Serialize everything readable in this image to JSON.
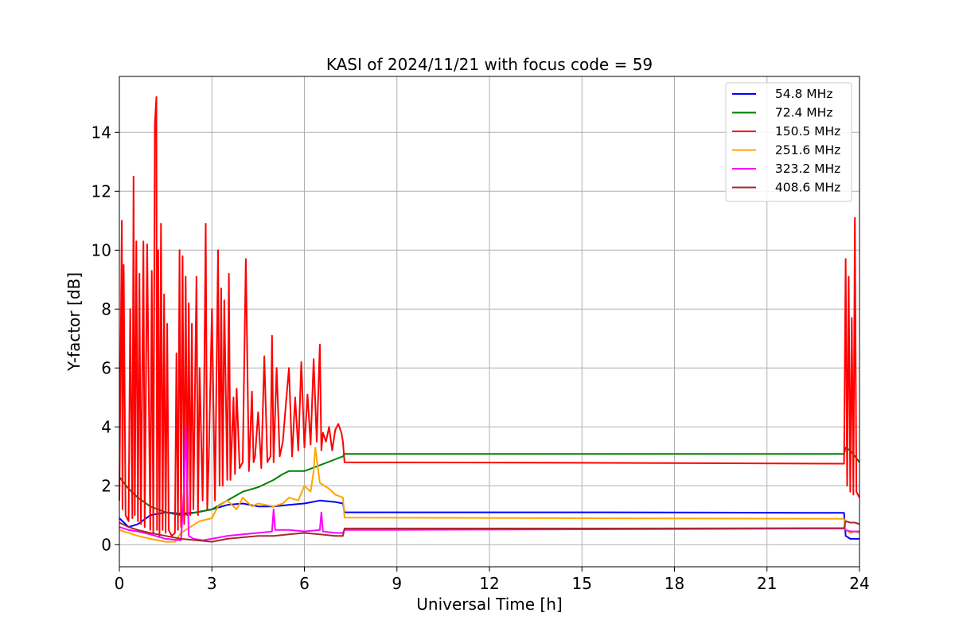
{
  "chart_data": {
    "type": "line",
    "title": "KASI of 2024/11/21 with focus code = 59",
    "xlabel": "Universal Time [h]",
    "ylabel": "Y-factor [dB]",
    "xlim": [
      0,
      24
    ],
    "ylim": [
      -0.75,
      15.9
    ],
    "xticks": [
      0,
      3,
      6,
      9,
      12,
      15,
      18,
      21,
      24
    ],
    "yticks": [
      0,
      2,
      4,
      6,
      8,
      10,
      12,
      14
    ],
    "grid": true,
    "legend_position": "top-right",
    "series": [
      {
        "name": "  54.8 MHz",
        "color": "#0000ff",
        "x": [
          0,
          0.3,
          0.6,
          1.0,
          1.5,
          2.0,
          2.5,
          3.0,
          3.5,
          4.0,
          4.5,
          5.0,
          5.5,
          6.0,
          6.5,
          7.0,
          7.25,
          7.3,
          15.0,
          23.5,
          23.55,
          23.7,
          23.85,
          24.0
        ],
        "y": [
          0.9,
          0.6,
          0.7,
          1.0,
          1.1,
          1.05,
          1.1,
          1.2,
          1.35,
          1.4,
          1.3,
          1.3,
          1.35,
          1.4,
          1.5,
          1.45,
          1.4,
          1.1,
          1.1,
          1.08,
          0.3,
          0.2,
          0.2,
          0.2
        ]
      },
      {
        "name": "  72.4 MHz",
        "color": "#008000",
        "x": [
          0,
          0.3,
          0.6,
          1.0,
          1.5,
          2.0,
          2.5,
          3.0,
          3.5,
          4.0,
          4.5,
          5.0,
          5.3,
          5.5,
          6.0,
          6.5,
          7.0,
          7.25,
          7.3,
          15.0,
          23.5,
          23.55,
          23.7,
          23.85,
          24.0
        ],
        "y": [
          2.3,
          1.9,
          1.6,
          1.3,
          1.1,
          1.0,
          1.1,
          1.2,
          1.5,
          1.8,
          1.95,
          2.2,
          2.4,
          2.5,
          2.5,
          2.7,
          2.9,
          3.0,
          3.08,
          3.08,
          3.08,
          3.3,
          3.2,
          3.0,
          2.8
        ]
      },
      {
        "name": "  150.5 MHz",
        "color": "#ff0000",
        "x": [
          0,
          0.08,
          0.1,
          0.14,
          0.2,
          0.3,
          0.35,
          0.42,
          0.46,
          0.5,
          0.55,
          0.6,
          0.65,
          0.7,
          0.78,
          0.82,
          0.9,
          1.0,
          1.05,
          1.1,
          1.15,
          1.2,
          1.22,
          1.26,
          1.3,
          1.35,
          1.4,
          1.45,
          1.5,
          1.55,
          1.6,
          1.7,
          1.8,
          1.85,
          1.9,
          1.95,
          2.0,
          2.05,
          2.1,
          2.15,
          2.2,
          2.25,
          2.3,
          2.35,
          2.4,
          2.5,
          2.55,
          2.6,
          2.7,
          2.75,
          2.8,
          2.85,
          2.9,
          3.0,
          3.1,
          3.2,
          3.25,
          3.3,
          3.35,
          3.4,
          3.5,
          3.55,
          3.6,
          3.7,
          3.75,
          3.8,
          3.9,
          4.0,
          4.1,
          4.2,
          4.3,
          4.35,
          4.4,
          4.5,
          4.6,
          4.7,
          4.8,
          4.9,
          4.95,
          5.0,
          5.1,
          5.2,
          5.3,
          5.4,
          5.5,
          5.6,
          5.7,
          5.8,
          5.9,
          6.0,
          6.1,
          6.2,
          6.3,
          6.4,
          6.5,
          6.55,
          6.6,
          6.7,
          6.8,
          6.9,
          7.0,
          7.1,
          7.2,
          7.25,
          7.3,
          15.0,
          23.5,
          23.55,
          23.6,
          23.65,
          23.7,
          23.75,
          23.8,
          23.85,
          23.9,
          24.0
        ],
        "y": [
          1.5,
          11.0,
          1.2,
          9.5,
          1.0,
          0.8,
          8.0,
          0.9,
          12.5,
          1.0,
          10.3,
          0.8,
          9.2,
          0.7,
          10.3,
          0.6,
          10.2,
          0.5,
          9.3,
          0.4,
          14.3,
          15.2,
          0.5,
          10.0,
          0.3,
          10.9,
          0.5,
          8.5,
          0.4,
          7.5,
          0.5,
          0.3,
          0.4,
          6.5,
          0.5,
          10.0,
          0.6,
          9.8,
          0.7,
          9.1,
          1.0,
          8.2,
          1.0,
          7.5,
          1.2,
          9.1,
          1.0,
          6.0,
          1.5,
          5.5,
          10.9,
          1.2,
          3.0,
          8.0,
          1.5,
          10.0,
          2.0,
          8.7,
          2.0,
          8.3,
          2.2,
          9.2,
          2.2,
          5.0,
          2.4,
          5.3,
          2.6,
          2.8,
          9.7,
          2.5,
          5.2,
          2.8,
          3.0,
          4.5,
          2.6,
          6.4,
          2.8,
          3.0,
          7.1,
          2.8,
          6.0,
          3.0,
          3.5,
          4.8,
          6.0,
          3.0,
          5.0,
          3.2,
          6.2,
          3.3,
          5.1,
          3.4,
          6.3,
          3.5,
          6.8,
          3.2,
          3.8,
          3.5,
          4.0,
          3.2,
          3.9,
          4.1,
          3.8,
          3.5,
          2.8,
          2.78,
          2.75,
          9.7,
          2.0,
          9.1,
          1.8,
          7.7,
          1.7,
          11.1,
          1.8,
          1.6
        ]
      },
      {
        "name": "  251.6 MHz",
        "color": "#ffa500",
        "x": [
          0,
          0.3,
          0.6,
          1.0,
          1.5,
          1.8,
          2.0,
          2.3,
          2.6,
          3.0,
          3.2,
          3.5,
          3.8,
          4.0,
          4.3,
          4.5,
          5.0,
          5.3,
          5.5,
          5.8,
          6.0,
          6.2,
          6.3,
          6.35,
          6.5,
          6.8,
          7.0,
          7.25,
          7.3,
          15.0,
          23.5,
          23.55,
          23.7,
          23.85,
          24.0
        ],
        "y": [
          0.5,
          0.4,
          0.3,
          0.2,
          0.1,
          0.1,
          0.4,
          0.6,
          0.8,
          0.9,
          1.3,
          1.5,
          1.2,
          1.6,
          1.3,
          1.4,
          1.3,
          1.4,
          1.6,
          1.5,
          2.0,
          1.8,
          2.5,
          3.3,
          2.1,
          1.9,
          1.7,
          1.6,
          0.92,
          0.9,
          0.88,
          0.5,
          0.4,
          0.45,
          0.4
        ]
      },
      {
        "name": "  323.2 MHz",
        "color": "#ff00ff",
        "x": [
          0,
          0.3,
          0.6,
          1.0,
          1.5,
          2.0,
          2.1,
          2.15,
          2.25,
          2.4,
          2.7,
          3.0,
          3.5,
          4.0,
          4.5,
          4.95,
          5.0,
          5.05,
          5.5,
          6.0,
          6.5,
          6.55,
          6.6,
          7.0,
          7.25,
          7.3,
          15.0,
          23.5,
          23.55,
          23.7,
          23.85,
          24.0
        ],
        "y": [
          0.6,
          0.5,
          0.45,
          0.35,
          0.2,
          0.15,
          2.0,
          4.0,
          0.3,
          0.2,
          0.15,
          0.2,
          0.3,
          0.35,
          0.4,
          0.45,
          1.2,
          0.5,
          0.5,
          0.45,
          0.5,
          1.1,
          0.45,
          0.4,
          0.4,
          0.5,
          0.52,
          0.55,
          0.5,
          0.45,
          0.45,
          0.45
        ]
      },
      {
        "name": "  408.6 MHz",
        "color": "#a52a2a",
        "x": [
          0,
          0.3,
          0.6,
          1.0,
          1.5,
          2.0,
          2.5,
          3.0,
          3.5,
          4.0,
          4.5,
          5.0,
          5.5,
          6.0,
          6.5,
          7.0,
          7.25,
          7.3,
          15.0,
          23.5,
          23.55,
          23.7,
          23.85,
          24.0
        ],
        "y": [
          0.75,
          0.6,
          0.5,
          0.4,
          0.3,
          0.2,
          0.15,
          0.1,
          0.2,
          0.25,
          0.3,
          0.3,
          0.35,
          0.4,
          0.35,
          0.3,
          0.3,
          0.55,
          0.55,
          0.56,
          0.8,
          0.75,
          0.75,
          0.7
        ]
      }
    ]
  }
}
